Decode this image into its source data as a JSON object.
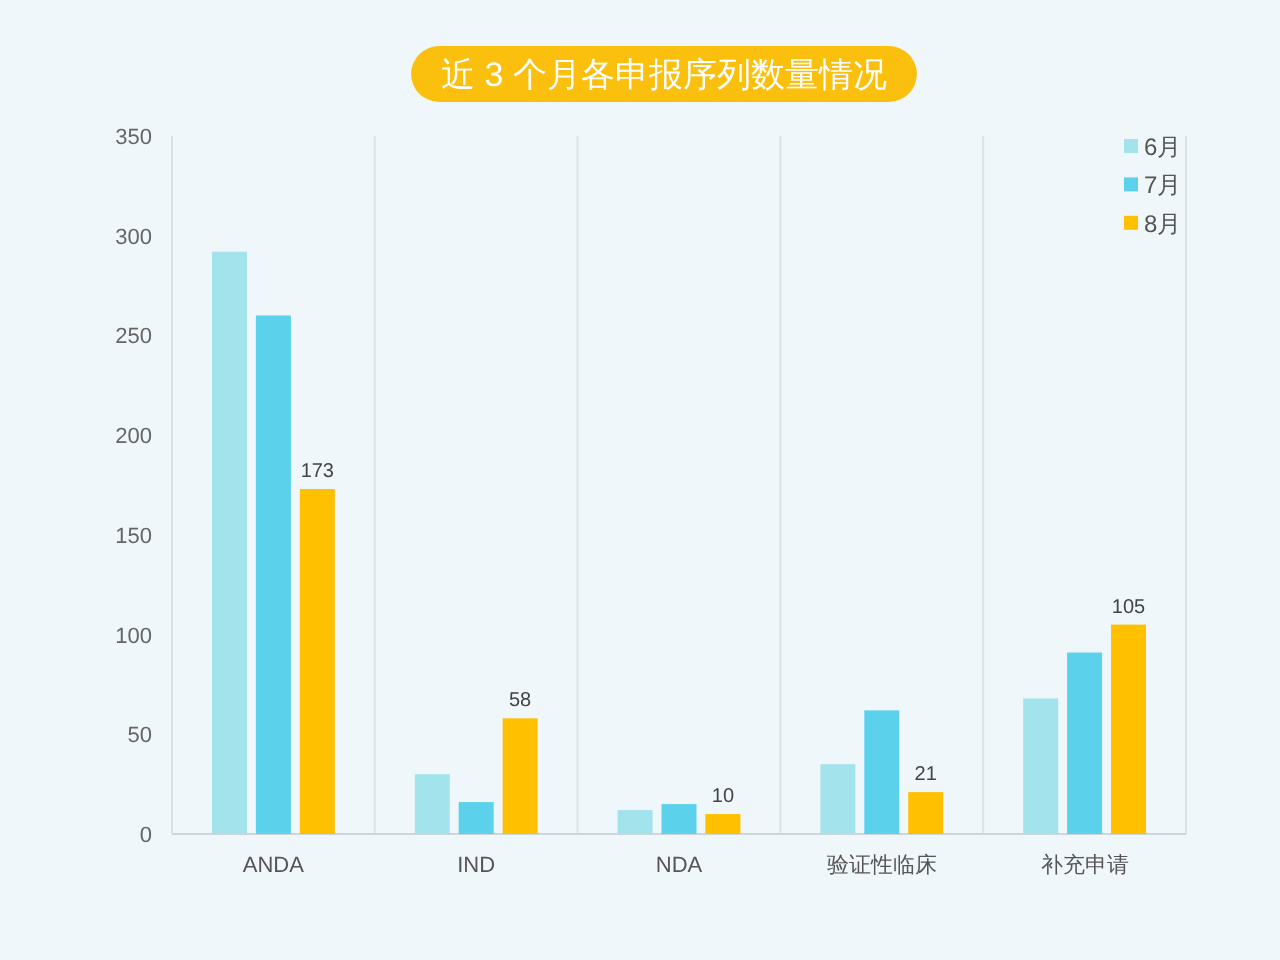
{
  "chart_data": {
    "type": "bar",
    "title": "近 3 个月各申报序列数量情况",
    "categories": [
      "ANDA",
      "IND",
      "NDA",
      "验证性临床",
      "补充申请"
    ],
    "series": [
      {
        "name": "6月",
        "color": "#a3e3ec",
        "values": [
          292,
          30,
          12,
          35,
          68
        ]
      },
      {
        "name": "7月",
        "color": "#5bd1ec",
        "values": [
          260,
          16,
          15,
          62,
          91
        ]
      },
      {
        "name": "8月",
        "color": "#ffc000",
        "values": [
          173,
          58,
          10,
          21,
          105
        ],
        "value_labels": [
          "173",
          "58",
          "10",
          "21",
          "105"
        ]
      }
    ],
    "ylim": [
      0,
      350
    ],
    "yticks": [
      0,
      50,
      100,
      150,
      200,
      250,
      300,
      350
    ],
    "grid": "x",
    "legend": "top right"
  }
}
